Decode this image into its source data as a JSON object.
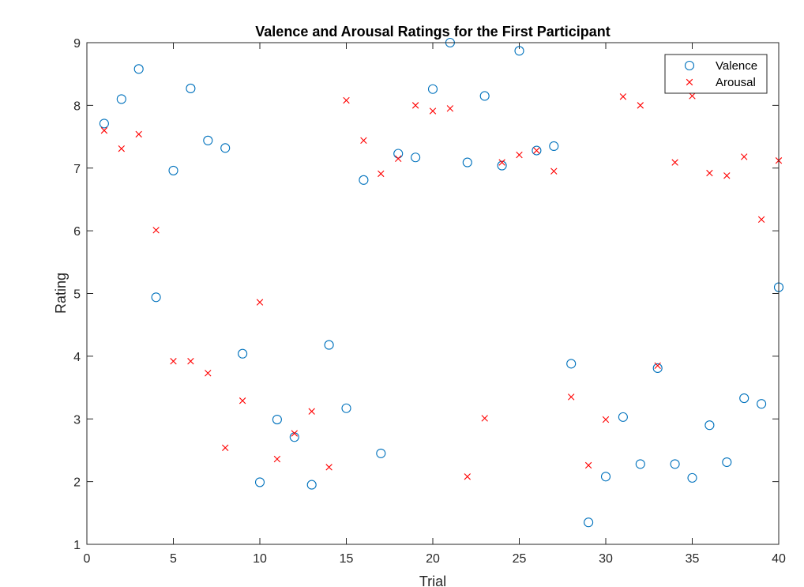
{
  "chart_data": {
    "type": "scatter",
    "title": "Valence and Arousal Ratings for the First Participant",
    "xlabel": "Trial",
    "ylabel": "Rating",
    "xlim": [
      0,
      40
    ],
    "ylim": [
      1,
      9
    ],
    "xticks": [
      0,
      5,
      10,
      15,
      20,
      25,
      30,
      35,
      40
    ],
    "yticks": [
      1,
      2,
      3,
      4,
      5,
      6,
      7,
      8,
      9
    ],
    "grid": false,
    "legend_position": "top-right",
    "series": [
      {
        "name": "Valence",
        "marker": "circle",
        "color": "#0072BD",
        "x": [
          1,
          2,
          3,
          4,
          5,
          6,
          7,
          8,
          9,
          10,
          11,
          12,
          13,
          14,
          15,
          16,
          17,
          18,
          19,
          20,
          21,
          22,
          23,
          24,
          25,
          26,
          27,
          28,
          29,
          30,
          31,
          32,
          33,
          34,
          35,
          36,
          37,
          38,
          39,
          40
        ],
        "y": [
          7.71,
          8.1,
          8.58,
          4.94,
          6.96,
          8.27,
          7.44,
          7.32,
          4.04,
          1.99,
          2.99,
          2.71,
          1.95,
          4.18,
          3.17,
          6.81,
          2.45,
          7.23,
          7.17,
          8.26,
          9.0,
          7.09,
          8.15,
          7.04,
          8.87,
          7.28,
          7.35,
          3.88,
          1.35,
          2.08,
          3.03,
          2.28,
          3.81,
          2.28,
          2.06,
          2.9,
          2.31,
          3.33,
          3.24,
          5.1
        ]
      },
      {
        "name": "Arousal",
        "marker": "x",
        "color": "#FF0000",
        "x": [
          1,
          2,
          3,
          4,
          5,
          6,
          7,
          8,
          9,
          10,
          11,
          12,
          13,
          14,
          15,
          16,
          17,
          18,
          19,
          20,
          21,
          22,
          23,
          24,
          25,
          26,
          27,
          28,
          29,
          30,
          31,
          32,
          33,
          34,
          35,
          36,
          37,
          38,
          39,
          40
        ],
        "y": [
          7.6,
          7.31,
          7.54,
          6.01,
          3.92,
          3.92,
          3.73,
          2.54,
          3.29,
          4.86,
          2.36,
          2.77,
          3.12,
          2.23,
          8.08,
          7.44,
          6.91,
          7.15,
          8.0,
          7.91,
          7.95,
          2.08,
          3.01,
          7.09,
          7.21,
          7.28,
          6.95,
          3.35,
          2.26,
          2.99,
          8.14,
          8.0,
          3.85,
          7.09,
          8.15,
          6.92,
          6.88,
          7.18,
          6.18,
          7.12
        ]
      }
    ]
  }
}
